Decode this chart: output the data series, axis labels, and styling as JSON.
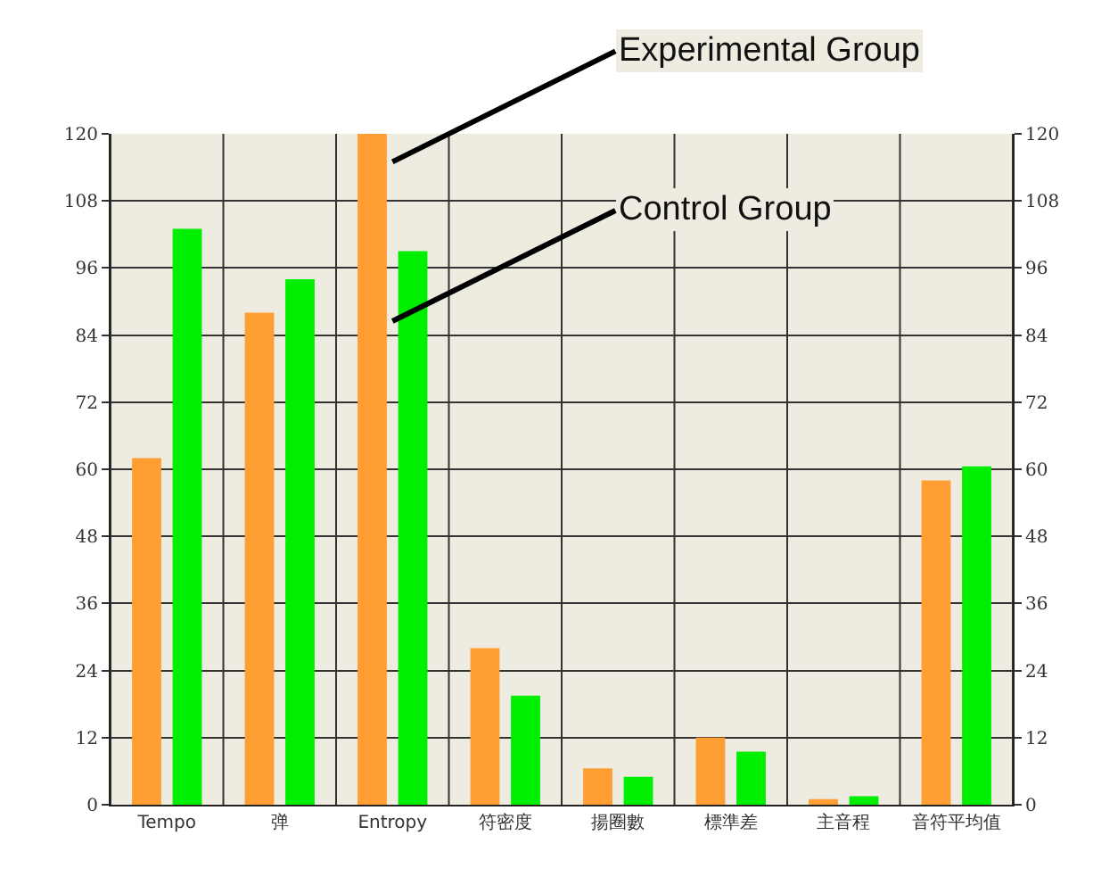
{
  "chart_data": {
    "type": "bar",
    "categories": [
      "Tempo",
      "弹",
      "Entropy",
      "符密度",
      "揚圈數",
      "標準差",
      "主音程",
      "音符平均值"
    ],
    "series": [
      {
        "color": "#ff9f33",
        "values": [
          62,
          88,
          120,
          28,
          6.5,
          12,
          1,
          58
        ]
      },
      {
        "color": "#00ee00",
        "values": [
          103,
          94,
          99,
          19.5,
          5,
          9.5,
          1.5,
          60.5
        ]
      }
    ],
    "ylim": [
      0,
      120
    ],
    "yticks": [
      0,
      12,
      24,
      36,
      48,
      60,
      72,
      84,
      96,
      108,
      120
    ],
    "y2lim": [
      0,
      120
    ],
    "y2ticks": [
      0,
      12,
      24,
      36,
      48,
      60,
      72,
      84,
      96,
      108,
      120
    ],
    "grid": true,
    "annotations": [
      {
        "text": "Experimental Group",
        "x": "Entropy",
        "y": 115
      },
      {
        "text": "Control Group",
        "x": "Entropy",
        "y": 86.5
      }
    ]
  }
}
